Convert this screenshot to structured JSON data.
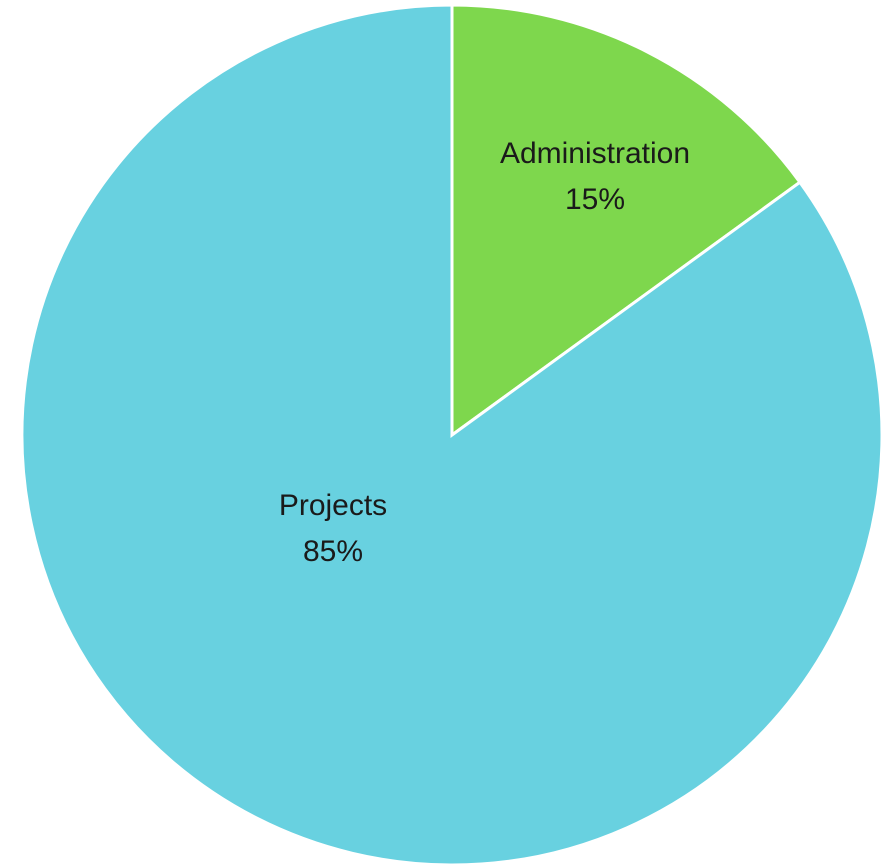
{
  "chart_data": {
    "type": "pie",
    "title": "",
    "legend": "none",
    "start_angle_deg": 0,
    "direction": "clockwise",
    "slices": [
      {
        "label": "Administration",
        "value": 15,
        "display": "15%",
        "color": "#7ed74d"
      },
      {
        "label": "Projects",
        "value": 85,
        "display": "85%",
        "color": "#68d1e0"
      }
    ]
  }
}
